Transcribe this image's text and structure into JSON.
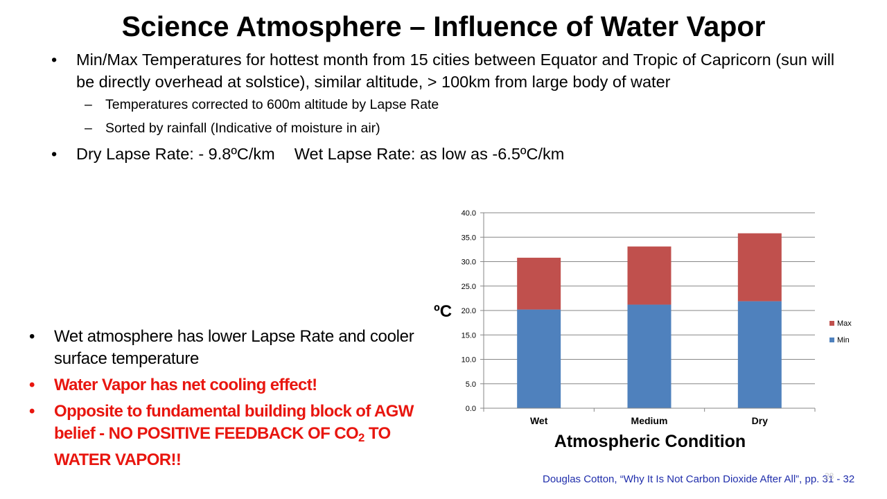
{
  "title": "Science Atmosphere – Influence of Water Vapor",
  "bullets": {
    "b1": "Min/Max Temperatures for hottest month from 15 cities between Equator and Tropic of Capricorn (sun will be directly overhead at solstice), similar altitude, > 100km from large body of water",
    "b1_sub1": "Temperatures corrected to 600m altitude by Lapse Rate",
    "b1_sub2": "Sorted by rainfall (Indicative of moisture in air)",
    "b2_part1": "Dry Lapse Rate:  - 9.8ºC/km",
    "b2_part2": "Wet Lapse Rate:  as low as -6.5ºC/km"
  },
  "left_bullets": {
    "l1": "Wet atmosphere has lower Lapse Rate and cooler surface temperature",
    "l2": "Water Vapor has net cooling effect!",
    "l3_pre": "Opposite to fundamental building block of AGW belief  -  NO POSITIVE FEEDBACK OF CO",
    "l3_sub": "2",
    "l3_post": " TO WATER VAPOR!!"
  },
  "citation": "Douglas Cotton, “Why It Is Not Carbon Dioxide After All”, pp. 31 - 32",
  "slide_number": "28",
  "colors": {
    "min": "#4f81bd",
    "max": "#c0504d",
    "red_text": "#e8160f",
    "citation": "#1f2dab"
  },
  "chart_data": {
    "type": "bar",
    "stacked": true,
    "categories": [
      "Wet",
      "Medium",
      "Dry"
    ],
    "series": [
      {
        "name": "Min",
        "values": [
          20.2,
          21.2,
          21.9
        ]
      },
      {
        "name": "Max",
        "values": [
          10.6,
          11.9,
          13.9
        ]
      }
    ],
    "xlabel": "Atmospheric Condition",
    "ylabel": "ºC",
    "ylim": [
      0,
      40
    ],
    "yticks": [
      "0.0",
      "5.0",
      "10.0",
      "15.0",
      "20.0",
      "25.0",
      "30.0",
      "35.0",
      "40.0"
    ],
    "grid": true,
    "legend_position": "right"
  }
}
